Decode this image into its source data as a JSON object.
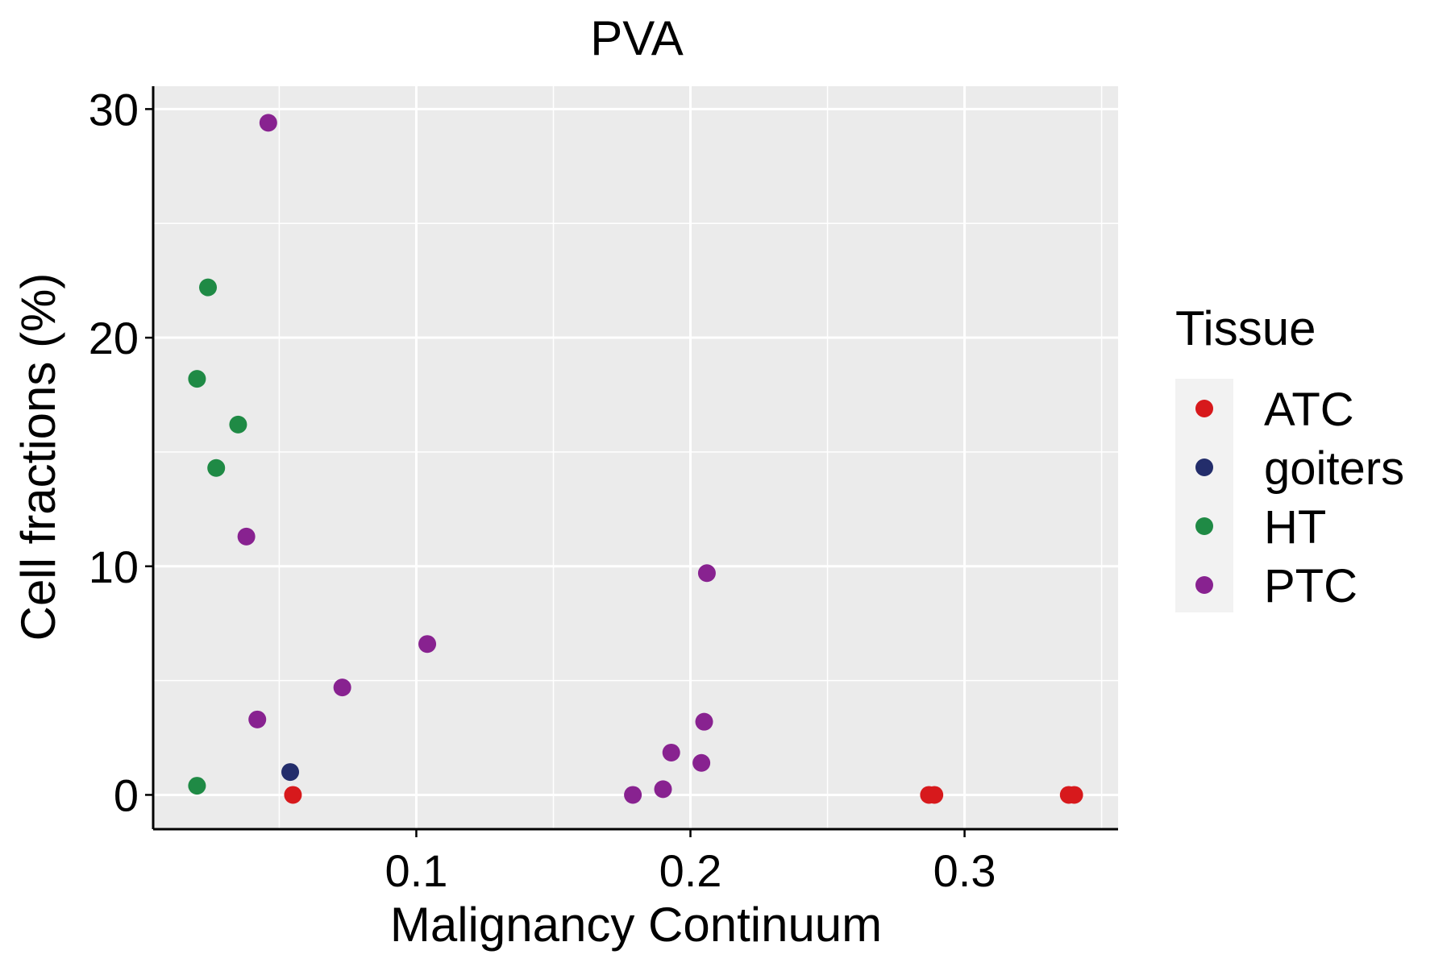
{
  "chart_data": {
    "type": "scatter",
    "title": "PVA",
    "xlabel": "Malignancy Continuum",
    "ylabel": "Cell fractions (%)",
    "xlim": [
      0.004,
      0.356
    ],
    "ylim": [
      -1.5,
      31
    ],
    "x_major_ticks": [
      0.1,
      0.2,
      0.3
    ],
    "x_minor_ticks": [
      0.05,
      0.15,
      0.25,
      0.35
    ],
    "y_major_ticks": [
      0,
      10,
      20,
      30
    ],
    "y_minor_ticks": [
      5,
      15,
      25
    ],
    "x_tick_labels": [
      "0.1",
      "0.2",
      "0.3"
    ],
    "y_tick_labels": [
      "0",
      "10",
      "20",
      "30"
    ],
    "grid": true,
    "legend": {
      "title": "Tissue",
      "position": "right",
      "entries": [
        {
          "label": "ATC",
          "color": "#d7191c"
        },
        {
          "label": "goiters",
          "color": "#232d6b"
        },
        {
          "label": "HT",
          "color": "#1f8a45"
        },
        {
          "label": "PTC",
          "color": "#882290"
        }
      ]
    },
    "series": [
      {
        "name": "ATC",
        "color": "#d7191c",
        "points": [
          {
            "x": 0.055,
            "y": 0.0
          },
          {
            "x": 0.287,
            "y": 0.0
          },
          {
            "x": 0.289,
            "y": 0.0
          },
          {
            "x": 0.338,
            "y": 0.0
          },
          {
            "x": 0.34,
            "y": 0.0
          }
        ]
      },
      {
        "name": "goiters",
        "color": "#232d6b",
        "points": [
          {
            "x": 0.054,
            "y": 1.0
          }
        ]
      },
      {
        "name": "HT",
        "color": "#1f8a45",
        "points": [
          {
            "x": 0.02,
            "y": 0.4
          },
          {
            "x": 0.02,
            "y": 18.2
          },
          {
            "x": 0.024,
            "y": 22.2
          },
          {
            "x": 0.027,
            "y": 14.3
          },
          {
            "x": 0.035,
            "y": 16.2
          }
        ]
      },
      {
        "name": "PTC",
        "color": "#882290",
        "points": [
          {
            "x": 0.038,
            "y": 11.3
          },
          {
            "x": 0.042,
            "y": 3.3
          },
          {
            "x": 0.046,
            "y": 29.4
          },
          {
            "x": 0.073,
            "y": 4.7
          },
          {
            "x": 0.104,
            "y": 6.6
          },
          {
            "x": 0.179,
            "y": 0.0
          },
          {
            "x": 0.19,
            "y": 0.25
          },
          {
            "x": 0.193,
            "y": 1.85
          },
          {
            "x": 0.204,
            "y": 1.4
          },
          {
            "x": 0.205,
            "y": 3.2
          },
          {
            "x": 0.206,
            "y": 9.7
          }
        ]
      }
    ]
  }
}
